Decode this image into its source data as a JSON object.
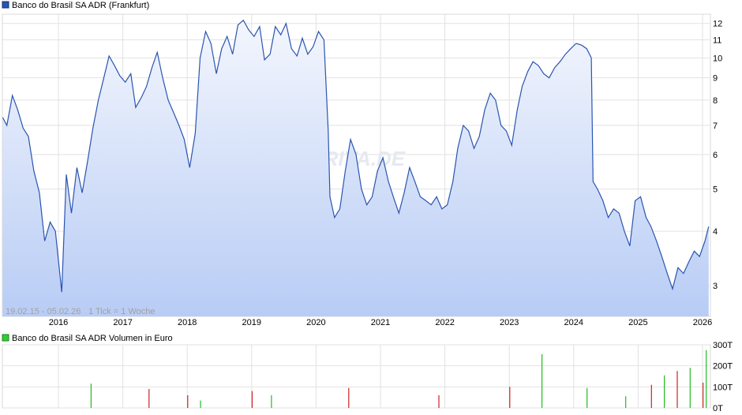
{
  "chart_data": [
    {
      "type": "line",
      "legend": "Banco do Brasil SA ADR (Frankfurt)",
      "y_scale": "log",
      "ylim": [
        2.55,
        12.6
      ],
      "y_ticks": [
        3,
        4,
        5,
        6,
        7,
        8,
        9,
        10,
        11,
        12
      ],
      "x_ticks": [
        "2016",
        "2017",
        "2018",
        "2019",
        "2020",
        "2021",
        "2022",
        "2023",
        "2024",
        "2025",
        "2026"
      ],
      "date_range_label": "19.02.15 - 05.02.26",
      "tick_note": "1 Tick = 1 Woche",
      "watermark": "ARIVA.DE",
      "grid": true,
      "line_color": "#2a55b0",
      "fill_top": "#f3f6fd",
      "fill_bottom": "#b8ccf5",
      "series": [
        {
          "x": [
            "2015-02-19",
            "2015-03-15",
            "2015-04-15",
            "2015-05-15",
            "2015-06-15",
            "2015-07-15",
            "2015-08-15",
            "2015-09-15",
            "2015-10-15",
            "2015-11-15",
            "2015-12-15",
            "2016-01-20",
            "2016-02-15",
            "2016-03-15",
            "2016-04-15",
            "2016-05-15",
            "2016-06-15",
            "2016-07-15",
            "2016-08-15",
            "2016-09-15",
            "2016-10-15",
            "2016-11-15",
            "2016-12-15",
            "2017-01-15",
            "2017-02-15",
            "2017-03-15",
            "2017-04-15",
            "2017-05-15",
            "2017-06-15",
            "2017-07-15",
            "2017-08-15",
            "2017-09-15",
            "2017-10-15",
            "2017-11-15",
            "2017-12-15",
            "2018-01-15",
            "2018-02-15",
            "2018-03-15",
            "2018-04-15",
            "2018-05-15",
            "2018-06-15",
            "2018-07-15",
            "2018-08-15",
            "2018-09-15",
            "2018-10-15",
            "2018-11-15",
            "2018-12-15",
            "2019-01-15",
            "2019-02-15",
            "2019-03-15",
            "2019-04-15",
            "2019-05-15",
            "2019-06-15",
            "2019-07-15",
            "2019-08-15",
            "2019-09-15",
            "2019-10-15",
            "2019-11-15",
            "2019-12-15",
            "2020-01-15",
            "2020-02-15",
            "2020-03-10",
            "2020-03-20",
            "2020-04-15",
            "2020-05-15",
            "2020-06-15",
            "2020-07-15",
            "2020-08-15",
            "2020-09-15",
            "2020-10-15",
            "2020-11-15",
            "2020-12-15",
            "2021-01-15",
            "2021-02-15",
            "2021-03-15",
            "2021-04-15",
            "2021-05-15",
            "2021-06-15",
            "2021-07-15",
            "2021-08-15",
            "2021-09-15",
            "2021-10-15",
            "2021-11-15",
            "2021-12-15",
            "2022-01-15",
            "2022-02-15",
            "2022-03-15",
            "2022-04-15",
            "2022-05-15",
            "2022-06-15",
            "2022-07-15",
            "2022-08-15",
            "2022-09-15",
            "2022-10-15",
            "2022-11-15",
            "2022-12-15",
            "2023-01-15",
            "2023-02-15",
            "2023-03-15",
            "2023-04-15",
            "2023-05-15",
            "2023-06-15",
            "2023-07-15",
            "2023-08-15",
            "2023-09-15",
            "2023-10-15",
            "2023-11-15",
            "2023-12-15",
            "2024-01-15",
            "2024-02-15",
            "2024-03-15",
            "2024-04-10",
            "2024-04-20",
            "2024-05-15",
            "2024-06-15",
            "2024-07-15",
            "2024-08-15",
            "2024-09-15",
            "2024-10-15",
            "2024-11-15",
            "2024-12-15",
            "2025-01-15",
            "2025-02-15",
            "2025-03-15",
            "2025-04-15",
            "2025-05-15",
            "2025-06-15",
            "2025-07-15",
            "2025-08-15",
            "2025-09-15",
            "2025-10-15",
            "2025-11-15",
            "2025-12-15",
            "2026-01-15",
            "2026-02-05"
          ],
          "y": [
            7.3,
            7.0,
            8.2,
            7.6,
            6.9,
            6.6,
            5.5,
            4.9,
            3.8,
            4.2,
            4.0,
            2.9,
            5.4,
            4.4,
            5.6,
            4.9,
            5.8,
            6.9,
            8.0,
            9.0,
            10.1,
            9.6,
            9.1,
            8.8,
            9.2,
            7.7,
            8.1,
            8.6,
            9.5,
            10.3,
            9.0,
            8.0,
            7.5,
            7.0,
            6.5,
            5.6,
            6.7,
            10.0,
            11.5,
            10.8,
            9.2,
            10.5,
            11.2,
            10.2,
            11.9,
            12.2,
            11.6,
            11.2,
            11.8,
            9.9,
            10.2,
            11.8,
            11.3,
            12.0,
            10.5,
            10.1,
            11.1,
            10.2,
            10.6,
            11.5,
            11.0,
            6.8,
            4.8,
            4.3,
            4.5,
            5.5,
            6.5,
            6.0,
            5.0,
            4.6,
            4.8,
            5.5,
            5.9,
            5.2,
            4.8,
            4.4,
            4.9,
            5.6,
            5.2,
            4.8,
            4.7,
            4.6,
            4.8,
            4.5,
            4.6,
            5.2,
            6.2,
            7.0,
            6.8,
            6.2,
            6.6,
            7.6,
            8.3,
            8.0,
            7.0,
            6.8,
            6.3,
            7.6,
            8.6,
            9.3,
            9.8,
            9.6,
            9.2,
            9.0,
            9.5,
            9.8,
            10.2,
            10.5,
            10.8,
            10.7,
            10.5,
            10.0,
            5.2,
            5.0,
            4.7,
            4.3,
            4.5,
            4.4,
            4.0,
            3.7,
            4.7,
            4.8,
            4.3,
            4.1,
            3.8,
            3.5,
            3.2,
            2.95,
            3.3,
            3.2,
            3.4,
            3.6,
            3.5,
            3.8,
            4.1
          ]
        }
      ]
    },
    {
      "type": "bar",
      "legend": "Banco do Brasil SA ADR Volumen in Euro",
      "ylim": [
        0,
        300
      ],
      "y_ticks": [
        "0T",
        "100T",
        "200T",
        "300T"
      ],
      "up_color": "#22bb22",
      "down_color": "#cc2222",
      "series": [
        {
          "x_year": [
            2016.5,
            2017.4,
            2018.0,
            2018.2,
            2019.0,
            2019.3,
            2020.5,
            2021.9,
            2023.0,
            2023.5,
            2024.2,
            2024.8,
            2025.2,
            2025.4,
            2025.6,
            2025.8,
            2026.0,
            2026.05
          ],
          "values": [
            115,
            90,
            60,
            35,
            80,
            60,
            95,
            60,
            100,
            255,
            95,
            55,
            110,
            155,
            175,
            190,
            120,
            275
          ],
          "direction": [
            "up",
            "down",
            "down",
            "up",
            "down",
            "up",
            "down",
            "down",
            "down",
            "up",
            "up",
            "up",
            "down",
            "up",
            "down",
            "up",
            "down",
            "up"
          ]
        }
      ]
    }
  ]
}
